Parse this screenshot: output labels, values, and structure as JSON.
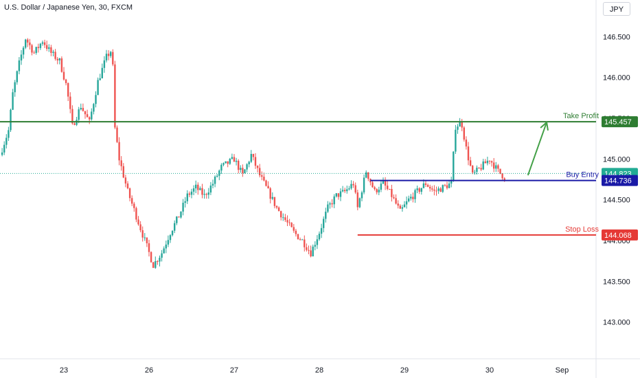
{
  "header": {
    "title": "U.S. Dollar / Japanese Yen, 30, FXCM",
    "currency_button": "JPY"
  },
  "colors": {
    "up": "#26a69a",
    "down": "#ef5350",
    "take_profit": "#2e7d32",
    "buy_entry": "#1a1aa6",
    "stop_loss": "#e53935",
    "current_price": "#22ab94",
    "arrow": "#43a047"
  },
  "chart_data": {
    "type": "candlestick",
    "title": "U.S. Dollar / Japanese Yen, 30, FXCM",
    "y_ticks": [
      "146.500",
      "146.000",
      "145.500",
      "145.000",
      "144.500",
      "144.000",
      "143.500",
      "143.000"
    ],
    "y_tick_values": [
      146.5,
      146.0,
      145.5,
      145.0,
      144.5,
      144.0,
      143.5,
      143.0
    ],
    "ylim": [
      142.55,
      146.95
    ],
    "x_ticks": [
      "23",
      "26",
      "27",
      "28",
      "29",
      "30",
      "Sep"
    ],
    "x_tick_positions": [
      0.75,
      1.75,
      2.75,
      3.75,
      4.75,
      5.75,
      6.6
    ],
    "xlim": [
      0.0,
      7.0
    ],
    "price_path": [
      [
        0.0,
        145.05
      ],
      [
        0.1,
        145.35
      ],
      [
        0.15,
        145.8
      ],
      [
        0.22,
        146.15
      ],
      [
        0.3,
        146.48
      ],
      [
        0.4,
        146.3
      ],
      [
        0.5,
        146.45
      ],
      [
        0.6,
        146.3
      ],
      [
        0.7,
        146.2
      ],
      [
        0.78,
        145.9
      ],
      [
        0.85,
        145.4
      ],
      [
        0.95,
        145.65
      ],
      [
        1.05,
        145.45
      ],
      [
        1.15,
        145.95
      ],
      [
        1.25,
        146.25
      ],
      [
        1.32,
        146.35
      ],
      [
        1.34,
        145.45
      ],
      [
        1.4,
        145.0
      ],
      [
        1.5,
        144.6
      ],
      [
        1.6,
        144.3
      ],
      [
        1.7,
        144.0
      ],
      [
        1.8,
        143.7
      ],
      [
        1.9,
        143.85
      ],
      [
        2.0,
        144.1
      ],
      [
        2.1,
        144.3
      ],
      [
        2.2,
        144.55
      ],
      [
        2.3,
        144.65
      ],
      [
        2.4,
        144.55
      ],
      [
        2.5,
        144.7
      ],
      [
        2.6,
        144.9
      ],
      [
        2.75,
        145.0
      ],
      [
        2.85,
        144.8
      ],
      [
        2.95,
        145.05
      ],
      [
        3.05,
        144.8
      ],
      [
        3.15,
        144.6
      ],
      [
        3.25,
        144.4
      ],
      [
        3.35,
        144.25
      ],
      [
        3.45,
        144.1
      ],
      [
        3.55,
        144.0
      ],
      [
        3.65,
        143.85
      ],
      [
        3.75,
        144.1
      ],
      [
        3.85,
        144.4
      ],
      [
        3.95,
        144.55
      ],
      [
        4.05,
        144.6
      ],
      [
        4.15,
        144.7
      ],
      [
        4.2,
        144.4
      ],
      [
        4.3,
        144.85
      ],
      [
        4.4,
        144.6
      ],
      [
        4.5,
        144.7
      ],
      [
        4.6,
        144.55
      ],
      [
        4.7,
        144.35
      ],
      [
        4.8,
        144.5
      ],
      [
        4.9,
        144.6
      ],
      [
        5.0,
        144.7
      ],
      [
        5.1,
        144.6
      ],
      [
        5.2,
        144.65
      ],
      [
        5.3,
        144.7
      ],
      [
        5.35,
        145.4
      ],
      [
        5.42,
        145.45
      ],
      [
        5.48,
        145.1
      ],
      [
        5.55,
        144.8
      ],
      [
        5.65,
        144.9
      ],
      [
        5.75,
        145.0
      ],
      [
        5.85,
        144.85
      ],
      [
        5.95,
        144.75
      ]
    ],
    "levels": [
      {
        "name": "Take Profit",
        "value": "145.457",
        "price": 145.457,
        "x_start": 0.0
      },
      {
        "name": "Buy Entry",
        "value": "144.736",
        "price": 144.736,
        "x_start": 4.35
      },
      {
        "name": "Stop Loss",
        "value": "144.068",
        "price": 144.068,
        "x_start": 4.2
      }
    ],
    "current_price": "144.823",
    "current_price_value": 144.823,
    "arrow": {
      "from": [
        6.2,
        144.8
      ],
      "to": [
        6.42,
        145.45
      ]
    }
  }
}
